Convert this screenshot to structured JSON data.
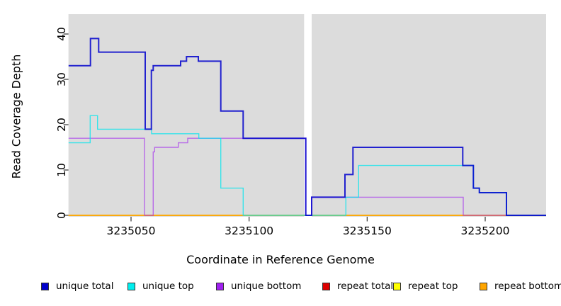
{
  "figure": {
    "x_axis": {
      "title": "Coordinate in Reference Genome",
      "tick_values": [
        3235050,
        3235100,
        3235150,
        3235200
      ],
      "tick_labels": [
        "3235050",
        "3235100",
        "3235150",
        "3235200"
      ],
      "range": [
        3235023.5,
        3235225.8
      ]
    },
    "y_axis": {
      "title": "Read Coverage Depth",
      "tick_values": [
        0,
        10,
        20,
        30,
        40
      ],
      "tick_labels": [
        "0",
        "10",
        "20",
        "30",
        "40"
      ],
      "range": [
        0,
        44.4
      ]
    },
    "plot_bg_color": "#dcdcdc",
    "gap_band": {
      "from": 3235123.3,
      "to": 3235126.5,
      "color": "#ffffff"
    }
  },
  "legend": [
    {
      "label": "unique total",
      "color": "#0000cc"
    },
    {
      "label": "unique top",
      "color": "#00eeee"
    },
    {
      "label": "unique bottom",
      "color": "#a020f0"
    },
    {
      "label": "repeat total",
      "color": "#dd0000"
    },
    {
      "label": "repeat top",
      "color": "#ffff00"
    },
    {
      "label": "repeat bottom",
      "color": "#ffa500"
    }
  ],
  "chart_data": {
    "type": "line",
    "subtype": "step",
    "title": "",
    "xlabel": "Coordinate in Reference Genome",
    "ylabel": "Read Coverage Depth",
    "xlim": [
      3235023.5,
      3235225.8
    ],
    "ylim": [
      0,
      44.4
    ],
    "grid": false,
    "legend_position": "bottom",
    "series": [
      {
        "name": "unique total",
        "color": "#0000cc",
        "width": 2,
        "opacity": 0.85,
        "z": 6,
        "steps": [
          [
            3235023.5,
            33
          ],
          [
            3235032.8,
            39
          ],
          [
            3235036.3,
            36
          ],
          [
            3235056,
            19
          ],
          [
            3235058.6,
            32
          ],
          [
            3235059.4,
            33
          ],
          [
            3235071,
            34
          ],
          [
            3235073.5,
            35
          ],
          [
            3235078.5,
            34
          ],
          [
            3235088,
            23
          ],
          [
            3235097.5,
            17
          ],
          [
            3235124,
            0
          ],
          [
            3235126.5,
            4
          ],
          [
            3235140.6,
            9
          ],
          [
            3235144,
            15
          ],
          [
            3235190.5,
            11
          ],
          [
            3235195,
            6
          ],
          [
            3235197.5,
            5
          ],
          [
            3235209,
            0
          ],
          [
            3235225.8,
            0
          ]
        ]
      },
      {
        "name": "unique top",
        "color": "#00e5ee",
        "width": 1.4,
        "opacity": 0.75,
        "z": 5,
        "steps": [
          [
            3235023.5,
            16
          ],
          [
            3235032.7,
            22
          ],
          [
            3235035.8,
            19
          ],
          [
            3235058.7,
            18
          ],
          [
            3235078.7,
            17
          ],
          [
            3235088,
            6
          ],
          [
            3235097.5,
            0
          ],
          [
            3235141,
            4
          ],
          [
            3235146.4,
            11
          ],
          [
            3235195,
            6
          ],
          [
            3235197.5,
            5
          ],
          [
            3235209,
            0
          ],
          [
            3235225.8,
            0
          ]
        ]
      },
      {
        "name": "unique bottom",
        "color": "#a020f0",
        "width": 1.4,
        "opacity": 0.6,
        "z": 4,
        "steps": [
          [
            3235023.5,
            17
          ],
          [
            3235055.7,
            0
          ],
          [
            3235059.4,
            14
          ],
          [
            3235060,
            15
          ],
          [
            3235070,
            16
          ],
          [
            3235074,
            17
          ],
          [
            3235124,
            0
          ],
          [
            3235126.5,
            4
          ],
          [
            3235190.7,
            0
          ],
          [
            3235225.8,
            0
          ]
        ]
      },
      {
        "name": "repeat total",
        "color": "#dd0000",
        "width": 1.4,
        "opacity": 1,
        "z": 1,
        "steps": [
          [
            3235023.5,
            0
          ],
          [
            3235225.8,
            0
          ]
        ]
      },
      {
        "name": "repeat top",
        "color": "#ffff00",
        "width": 1.4,
        "opacity": 1,
        "z": 2,
        "steps": [
          [
            3235023.5,
            0
          ],
          [
            3235225.8,
            0
          ]
        ]
      },
      {
        "name": "repeat bottom",
        "color": "#ffa500",
        "width": 1.6,
        "opacity": 1,
        "z": 3,
        "steps": [
          [
            3235023.5,
            0
          ],
          [
            3235225.8,
            0
          ]
        ]
      }
    ]
  }
}
